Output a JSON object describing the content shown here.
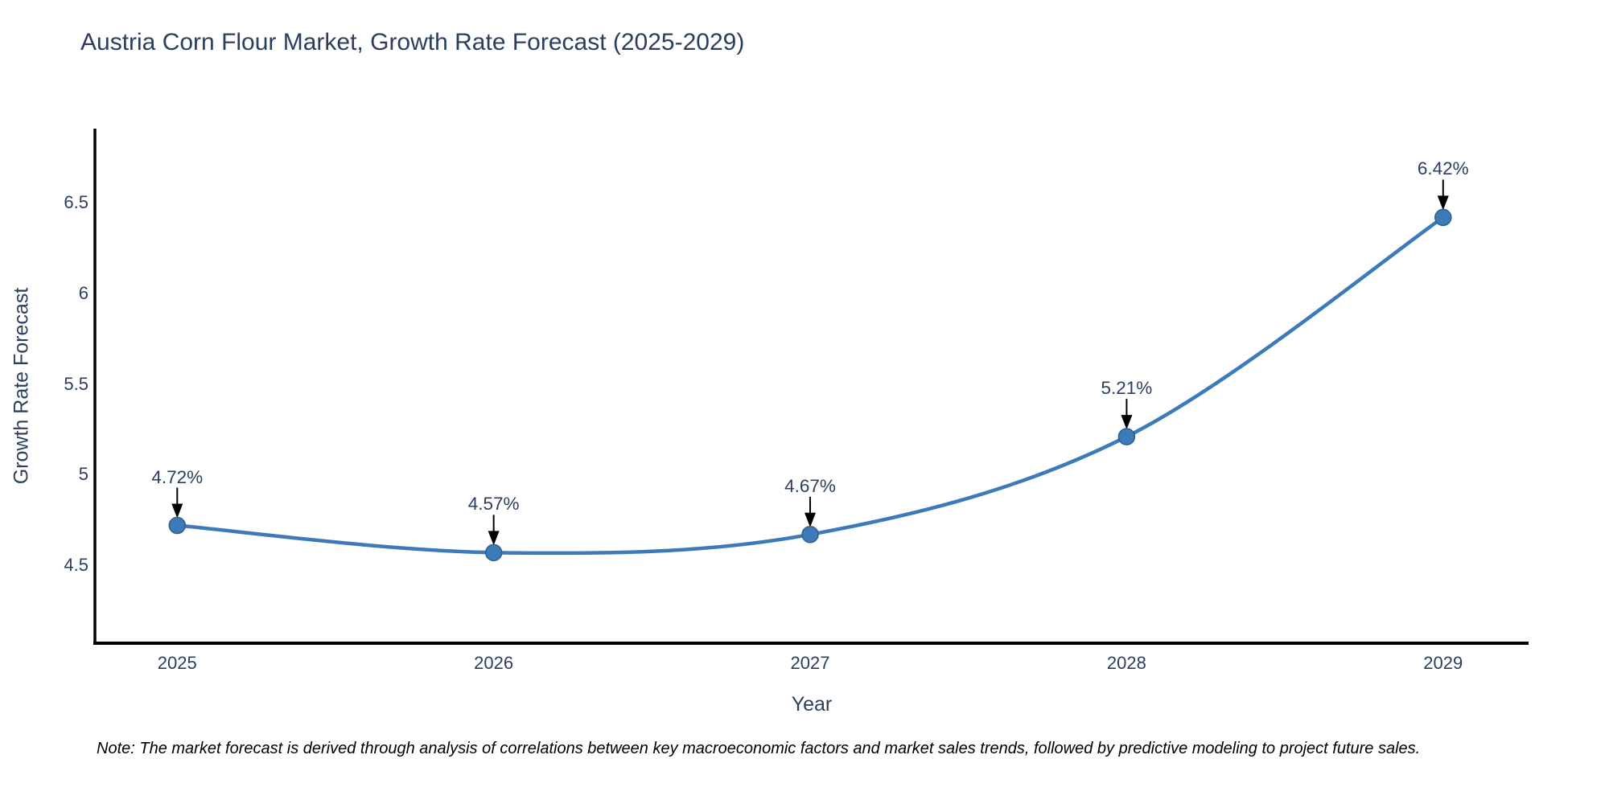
{
  "title": "Austria Corn Flour Market, Growth Rate Forecast (2025-2029)",
  "note": "Note: The market forecast is derived through analysis of correlations between key macroeconomic factors and market sales trends, followed by predictive modeling to project future sales.",
  "chart_data": {
    "type": "line",
    "title": "Austria Corn Flour Market, Growth Rate Forecast (2025-2029)",
    "xlabel": "Year",
    "ylabel": "Growth Rate Forecast",
    "grid": false,
    "legend": "none",
    "xlim": [
      2024.74,
      2029.27
    ],
    "ylim": [
      4.07,
      6.91
    ],
    "line_color": "#3c7ab8",
    "marker_color": "#3c7ab8",
    "marker_edge_color": "#2c618f",
    "axis_color": "#000000",
    "text_color": "#2a3f5f",
    "points": [
      {
        "x": 2025,
        "y": 4.72,
        "label": "4.72%"
      },
      {
        "x": 2026,
        "y": 4.57,
        "label": "4.57%"
      },
      {
        "x": 2027,
        "y": 4.67,
        "label": "4.67%"
      },
      {
        "x": 2028,
        "y": 5.21,
        "label": "5.21%"
      },
      {
        "x": 2029,
        "y": 6.42,
        "label": "6.42%"
      }
    ],
    "xticks": [
      {
        "v": 2025,
        "label": "2025"
      },
      {
        "v": 2026,
        "label": "2026"
      },
      {
        "v": 2027,
        "label": "2027"
      },
      {
        "v": 2028,
        "label": "2028"
      },
      {
        "v": 2029,
        "label": "2029"
      }
    ],
    "yticks": [
      {
        "v": 4.5,
        "label": "4.5"
      },
      {
        "v": 5,
        "label": "5"
      },
      {
        "v": 5.5,
        "label": "5.5"
      },
      {
        "v": 6,
        "label": "6"
      },
      {
        "v": 6.5,
        "label": "6.5"
      }
    ]
  }
}
